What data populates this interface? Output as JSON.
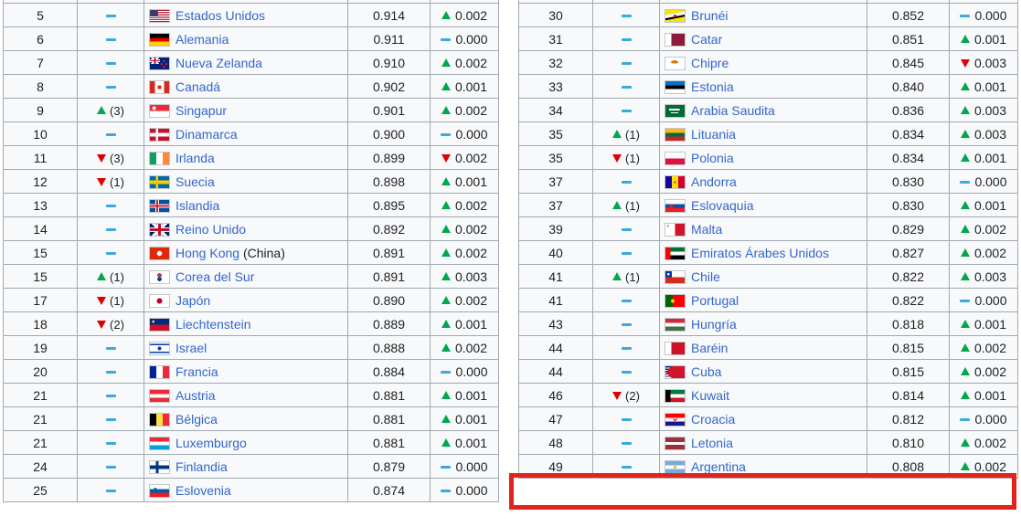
{
  "colors": {
    "up_triangle": "#00a84d",
    "down_triangle": "#e00000",
    "steady_dash": "#3ba9df",
    "country_link": "#3366cc",
    "table_border": "#a2a9b1",
    "cell_background": "#f8f9fa",
    "highlight_box": "#e2231a"
  },
  "tables": [
    {
      "name": "hdi-ranks-5-25",
      "rows": [
        {
          "rank": "5",
          "move": "steady",
          "move_n": "",
          "flag": "us",
          "country": "Estados Unidos",
          "suffix": "",
          "value": "0.914",
          "delta_move": "up",
          "delta": "0.002"
        },
        {
          "rank": "6",
          "move": "steady",
          "move_n": "",
          "flag": "de",
          "country": "Alemania",
          "suffix": "",
          "value": "0.911",
          "delta_move": "steady",
          "delta": "0.000"
        },
        {
          "rank": "7",
          "move": "steady",
          "move_n": "",
          "flag": "nz",
          "country": "Nueva Zelanda",
          "suffix": "",
          "value": "0.910",
          "delta_move": "up",
          "delta": "0.002"
        },
        {
          "rank": "8",
          "move": "steady",
          "move_n": "",
          "flag": "ca",
          "country": "Canadá",
          "suffix": "",
          "value": "0.902",
          "delta_move": "up",
          "delta": "0.001"
        },
        {
          "rank": "9",
          "move": "up",
          "move_n": "(3)",
          "flag": "sg",
          "country": "Singapur",
          "suffix": "",
          "value": "0.901",
          "delta_move": "up",
          "delta": "0.002"
        },
        {
          "rank": "10",
          "move": "steady",
          "move_n": "",
          "flag": "dk",
          "country": "Dinamarca",
          "suffix": "",
          "value": "0.900",
          "delta_move": "steady",
          "delta": "0.000"
        },
        {
          "rank": "11",
          "move": "down",
          "move_n": "(3)",
          "flag": "ie",
          "country": "Irlanda",
          "suffix": "",
          "value": "0.899",
          "delta_move": "down",
          "delta": "0.002"
        },
        {
          "rank": "12",
          "move": "down",
          "move_n": "(1)",
          "flag": "se",
          "country": "Suecia",
          "suffix": "",
          "value": "0.898",
          "delta_move": "up",
          "delta": "0.001"
        },
        {
          "rank": "13",
          "move": "steady",
          "move_n": "",
          "flag": "is",
          "country": "Islandia",
          "suffix": "",
          "value": "0.895",
          "delta_move": "up",
          "delta": "0.002"
        },
        {
          "rank": "14",
          "move": "steady",
          "move_n": "",
          "flag": "gb",
          "country": "Reino Unido",
          "suffix": "",
          "value": "0.892",
          "delta_move": "up",
          "delta": "0.002"
        },
        {
          "rank": "15",
          "move": "steady",
          "move_n": "",
          "flag": "hk",
          "country": "Hong Kong",
          "suffix": " (China)",
          "value": "0.891",
          "delta_move": "up",
          "delta": "0.002"
        },
        {
          "rank": "15",
          "move": "up",
          "move_n": "(1)",
          "flag": "kr",
          "country": "Corea del Sur",
          "suffix": "",
          "value": "0.891",
          "delta_move": "up",
          "delta": "0.003"
        },
        {
          "rank": "17",
          "move": "down",
          "move_n": "(1)",
          "flag": "jp",
          "country": "Japón",
          "suffix": "",
          "value": "0.890",
          "delta_move": "up",
          "delta": "0.002"
        },
        {
          "rank": "18",
          "move": "down",
          "move_n": "(2)",
          "flag": "li",
          "country": "Liechtenstein",
          "suffix": "",
          "value": "0.889",
          "delta_move": "up",
          "delta": "0.001"
        },
        {
          "rank": "19",
          "move": "steady",
          "move_n": "",
          "flag": "il",
          "country": "Israel",
          "suffix": "",
          "value": "0.888",
          "delta_move": "up",
          "delta": "0.002"
        },
        {
          "rank": "20",
          "move": "steady",
          "move_n": "",
          "flag": "fr",
          "country": "Francia",
          "suffix": "",
          "value": "0.884",
          "delta_move": "steady",
          "delta": "0.000"
        },
        {
          "rank": "21",
          "move": "steady",
          "move_n": "",
          "flag": "at",
          "country": "Austria",
          "suffix": "",
          "value": "0.881",
          "delta_move": "up",
          "delta": "0.001"
        },
        {
          "rank": "21",
          "move": "steady",
          "move_n": "",
          "flag": "be",
          "country": "Bélgica",
          "suffix": "",
          "value": "0.881",
          "delta_move": "up",
          "delta": "0.001"
        },
        {
          "rank": "21",
          "move": "steady",
          "move_n": "",
          "flag": "lu",
          "country": "Luxemburgo",
          "suffix": "",
          "value": "0.881",
          "delta_move": "up",
          "delta": "0.001"
        },
        {
          "rank": "24",
          "move": "steady",
          "move_n": "",
          "flag": "fi",
          "country": "Finlandia",
          "suffix": "",
          "value": "0.879",
          "delta_move": "steady",
          "delta": "0.000"
        },
        {
          "rank": "25",
          "move": "steady",
          "move_n": "",
          "flag": "si",
          "country": "Eslovenia",
          "suffix": "",
          "value": "0.874",
          "delta_move": "steady",
          "delta": "0.000"
        }
      ]
    },
    {
      "name": "hdi-ranks-30-49",
      "highlighted_rank": "49",
      "rows": [
        {
          "rank": "30",
          "move": "steady",
          "move_n": "",
          "flag": "bn",
          "country": "Brunéi",
          "suffix": "",
          "value": "0.852",
          "delta_move": "steady",
          "delta": "0.000"
        },
        {
          "rank": "31",
          "move": "steady",
          "move_n": "",
          "flag": "qa",
          "country": "Catar",
          "suffix": "",
          "value": "0.851",
          "delta_move": "up",
          "delta": "0.001"
        },
        {
          "rank": "32",
          "move": "steady",
          "move_n": "",
          "flag": "cy",
          "country": "Chipre",
          "suffix": "",
          "value": "0.845",
          "delta_move": "down",
          "delta": "0.003"
        },
        {
          "rank": "33",
          "move": "steady",
          "move_n": "",
          "flag": "ee",
          "country": "Estonia",
          "suffix": "",
          "value": "0.840",
          "delta_move": "up",
          "delta": "0.001"
        },
        {
          "rank": "34",
          "move": "steady",
          "move_n": "",
          "flag": "sa",
          "country": "Arabia Saudita",
          "suffix": "",
          "value": "0.836",
          "delta_move": "up",
          "delta": "0.003"
        },
        {
          "rank": "35",
          "move": "up",
          "move_n": "(1)",
          "flag": "lt",
          "country": "Lituania",
          "suffix": "",
          "value": "0.834",
          "delta_move": "up",
          "delta": "0.003"
        },
        {
          "rank": "35",
          "move": "down",
          "move_n": "(1)",
          "flag": "pl",
          "country": "Polonia",
          "suffix": "",
          "value": "0.834",
          "delta_move": "up",
          "delta": "0.001"
        },
        {
          "rank": "37",
          "move": "steady",
          "move_n": "",
          "flag": "ad",
          "country": "Andorra",
          "suffix": "",
          "value": "0.830",
          "delta_move": "steady",
          "delta": "0.000"
        },
        {
          "rank": "37",
          "move": "up",
          "move_n": "(1)",
          "flag": "sk",
          "country": "Eslovaquia",
          "suffix": "",
          "value": "0.830",
          "delta_move": "up",
          "delta": "0.001"
        },
        {
          "rank": "39",
          "move": "steady",
          "move_n": "",
          "flag": "mt",
          "country": "Malta",
          "suffix": "",
          "value": "0.829",
          "delta_move": "up",
          "delta": "0.002"
        },
        {
          "rank": "40",
          "move": "steady",
          "move_n": "",
          "flag": "ae",
          "country": "Emiratos Árabes Unidos",
          "suffix": "",
          "value": "0.827",
          "delta_move": "up",
          "delta": "0.002"
        },
        {
          "rank": "41",
          "move": "up",
          "move_n": "(1)",
          "flag": "cl",
          "country": "Chile",
          "suffix": "",
          "value": "0.822",
          "delta_move": "up",
          "delta": "0.003"
        },
        {
          "rank": "41",
          "move": "steady",
          "move_n": "",
          "flag": "pt",
          "country": "Portugal",
          "suffix": "",
          "value": "0.822",
          "delta_move": "steady",
          "delta": "0.000"
        },
        {
          "rank": "43",
          "move": "steady",
          "move_n": "",
          "flag": "hu",
          "country": "Hungría",
          "suffix": "",
          "value": "0.818",
          "delta_move": "up",
          "delta": "0.001"
        },
        {
          "rank": "44",
          "move": "steady",
          "move_n": "",
          "flag": "bh",
          "country": "Baréin",
          "suffix": "",
          "value": "0.815",
          "delta_move": "up",
          "delta": "0.002"
        },
        {
          "rank": "44",
          "move": "steady",
          "move_n": "",
          "flag": "cu",
          "country": "Cuba",
          "suffix": "",
          "value": "0.815",
          "delta_move": "up",
          "delta": "0.002"
        },
        {
          "rank": "46",
          "move": "down",
          "move_n": "(2)",
          "flag": "kw",
          "country": "Kuwait",
          "suffix": "",
          "value": "0.814",
          "delta_move": "up",
          "delta": "0.001"
        },
        {
          "rank": "47",
          "move": "steady",
          "move_n": "",
          "flag": "hr",
          "country": "Croacia",
          "suffix": "",
          "value": "0.812",
          "delta_move": "steady",
          "delta": "0.000"
        },
        {
          "rank": "48",
          "move": "steady",
          "move_n": "",
          "flag": "lv",
          "country": "Letonia",
          "suffix": "",
          "value": "0.810",
          "delta_move": "up",
          "delta": "0.002"
        },
        {
          "rank": "49",
          "move": "steady",
          "move_n": "",
          "flag": "ar",
          "country": "Argentina",
          "suffix": "",
          "value": "0.808",
          "delta_move": "up",
          "delta": "0.002"
        }
      ]
    }
  ]
}
